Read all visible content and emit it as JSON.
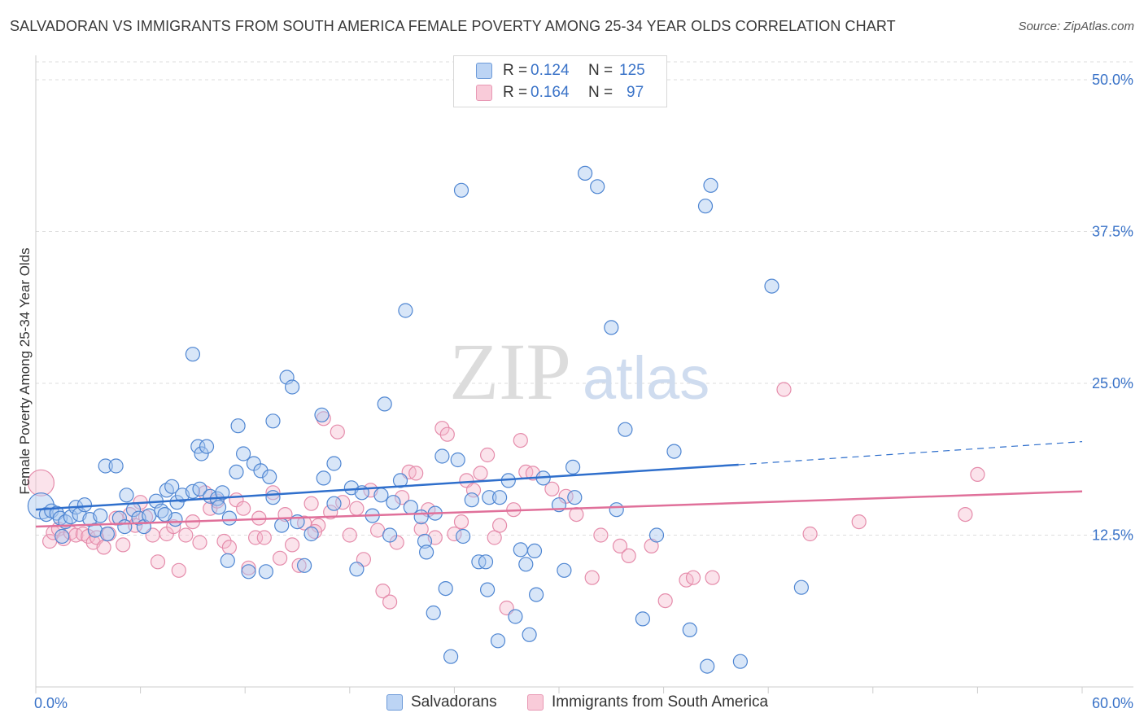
{
  "header": {
    "title": "SALVADORAN VS IMMIGRANTS FROM SOUTH AMERICA FEMALE POVERTY AMONG 25-34 YEAR OLDS CORRELATION CHART",
    "source": "Source: ZipAtlas.com"
  },
  "watermark": {
    "zip": "ZIP",
    "atlas": "atlas"
  },
  "stats": {
    "r_label": "R =",
    "n_label": "N =",
    "blue": {
      "r": "0.124",
      "n": "125"
    },
    "pink": {
      "r": "0.164",
      "n": "97"
    }
  },
  "legend": {
    "blue_name": "Salvadorans",
    "pink_name": "Immigrants from South America"
  },
  "colors": {
    "blue": "#3a73c8",
    "blue_fill": "#a9c8f0",
    "pink": "#e07098",
    "pink_fill": "#f6b8cc",
    "tick_label": "#3a73c8",
    "grid": "#dddddd"
  },
  "chart_data": {
    "type": "scatter",
    "title": "SALVADORAN VS IMMIGRANTS FROM SOUTH AMERICA FEMALE POVERTY AMONG 25-34 YEAR OLDS CORRELATION CHART",
    "xlabel": "",
    "ylabel": "Female Poverty Among 25-34 Year Olds",
    "xlim": [
      0,
      60
    ],
    "ylim": [
      0,
      52
    ],
    "x_tick_labels": [
      "0.0%",
      "60.0%"
    ],
    "y_ticks": [
      12.5,
      25.0,
      37.5,
      50.0
    ],
    "y_tick_labels": [
      "12.5%",
      "25.0%",
      "37.5%",
      "50.0%"
    ],
    "grid": "horizontal dashed",
    "legend_position": "bottom",
    "series": [
      {
        "name": "Salvadorans",
        "color": "#3a73c8",
        "r": 0.124,
        "n": 125,
        "trend": {
          "x": [
            0,
            40.3
          ],
          "y": [
            14.6,
            18.3
          ],
          "dashed_to_x": 60,
          "dashed_to_y": 20.2
        },
        "points": [
          [
            0.3,
            14.9
          ],
          [
            0.6,
            14.2
          ],
          [
            0.9,
            14.5
          ],
          [
            1.2,
            14.3
          ],
          [
            1.4,
            13.9
          ],
          [
            1.7,
            13.6
          ],
          [
            2.0,
            14.0
          ],
          [
            2.3,
            14.8
          ],
          [
            2.5,
            14.2
          ],
          [
            2.8,
            15.0
          ],
          [
            3.1,
            13.8
          ],
          [
            3.4,
            12.9
          ],
          [
            3.7,
            14.1
          ],
          [
            4.0,
            18.2
          ],
          [
            4.6,
            18.2
          ],
          [
            4.8,
            13.9
          ],
          [
            5.1,
            13.2
          ],
          [
            5.2,
            15.8
          ],
          [
            5.6,
            14.6
          ],
          [
            5.9,
            13.9
          ],
          [
            6.2,
            13.2
          ],
          [
            6.5,
            14.1
          ],
          [
            6.9,
            15.3
          ],
          [
            7.2,
            14.5
          ],
          [
            7.5,
            16.2
          ],
          [
            7.8,
            16.5
          ],
          [
            8.1,
            15.2
          ],
          [
            8.4,
            15.8
          ],
          [
            9.0,
            16.1
          ],
          [
            9.4,
            16.3
          ],
          [
            9.0,
            27.4
          ],
          [
            9.3,
            19.8
          ],
          [
            9.5,
            19.2
          ],
          [
            9.8,
            19.8
          ],
          [
            10.0,
            15.7
          ],
          [
            10.4,
            15.5
          ],
          [
            10.7,
            16.0
          ],
          [
            11.1,
            13.9
          ],
          [
            11.0,
            10.4
          ],
          [
            11.5,
            17.7
          ],
          [
            11.6,
            21.5
          ],
          [
            11.9,
            19.2
          ],
          [
            12.2,
            9.5
          ],
          [
            12.5,
            18.4
          ],
          [
            12.9,
            17.8
          ],
          [
            13.2,
            9.5
          ],
          [
            13.4,
            17.3
          ],
          [
            13.6,
            21.9
          ],
          [
            14.1,
            13.3
          ],
          [
            14.4,
            25.5
          ],
          [
            14.7,
            24.7
          ],
          [
            15.0,
            13.6
          ],
          [
            15.4,
            10.0
          ],
          [
            15.8,
            12.6
          ],
          [
            16.4,
            22.4
          ],
          [
            17.1,
            15.1
          ],
          [
            17.1,
            18.4
          ],
          [
            18.1,
            16.4
          ],
          [
            18.7,
            16.0
          ],
          [
            18.4,
            9.7
          ],
          [
            19.3,
            14.1
          ],
          [
            20.0,
            23.3
          ],
          [
            20.3,
            12.5
          ],
          [
            20.5,
            15.2
          ],
          [
            20.9,
            17.0
          ],
          [
            21.2,
            31.0
          ],
          [
            21.5,
            14.8
          ],
          [
            22.1,
            14.0
          ],
          [
            22.3,
            12.0
          ],
          [
            22.4,
            11.1
          ],
          [
            22.8,
            6.1
          ],
          [
            23.3,
            19.0
          ],
          [
            23.5,
            8.1
          ],
          [
            23.8,
            2.5
          ],
          [
            24.2,
            18.7
          ],
          [
            24.5,
            12.4
          ],
          [
            25.0,
            15.4
          ],
          [
            25.4,
            10.3
          ],
          [
            25.8,
            10.3
          ],
          [
            26.0,
            15.6
          ],
          [
            26.5,
            3.8
          ],
          [
            27.1,
            17.0
          ],
          [
            27.5,
            5.8
          ],
          [
            27.8,
            11.3
          ],
          [
            28.1,
            10.1
          ],
          [
            28.3,
            4.3
          ],
          [
            28.6,
            11.2
          ],
          [
            28.7,
            7.6
          ],
          [
            29.1,
            17.2
          ],
          [
            30.0,
            15.0
          ],
          [
            30.3,
            9.6
          ],
          [
            30.8,
            18.1
          ],
          [
            30.9,
            15.6
          ],
          [
            31.5,
            42.3
          ],
          [
            32.2,
            41.2
          ],
          [
            33.0,
            29.6
          ],
          [
            33.8,
            21.2
          ],
          [
            33.3,
            14.6
          ],
          [
            34.8,
            5.6
          ],
          [
            35.6,
            12.5
          ],
          [
            36.6,
            19.4
          ],
          [
            37.5,
            4.7
          ],
          [
            38.5,
            1.7
          ],
          [
            38.7,
            41.3
          ],
          [
            38.4,
            39.6
          ],
          [
            40.4,
            2.1
          ],
          [
            42.2,
            33.0
          ],
          [
            43.9,
            8.2
          ],
          [
            24.4,
            40.9
          ],
          [
            25.9,
            8.0
          ],
          [
            1.5,
            12.4
          ],
          [
            8.0,
            13.8
          ],
          [
            16.5,
            17.2
          ],
          [
            13.6,
            15.6
          ],
          [
            7.4,
            14.2
          ],
          [
            19.8,
            15.8
          ],
          [
            22.9,
            14.3
          ],
          [
            26.6,
            15.6
          ],
          [
            10.5,
            14.8
          ],
          [
            4.1,
            12.6
          ]
        ]
      },
      {
        "name": "Immigrants from South America",
        "color": "#e07098",
        "r": 0.164,
        "n": 97,
        "trend": {
          "x": [
            0,
            60
          ],
          "y": [
            13.2,
            16.1
          ]
        },
        "points": [
          [
            0.3,
            16.8
          ],
          [
            0.8,
            12.0
          ],
          [
            1.0,
            12.7
          ],
          [
            1.3,
            13.0
          ],
          [
            1.6,
            12.2
          ],
          [
            2.0,
            12.7
          ],
          [
            2.3,
            12.5
          ],
          [
            2.7,
            12.6
          ],
          [
            3.0,
            12.4
          ],
          [
            3.3,
            11.9
          ],
          [
            3.5,
            12.3
          ],
          [
            3.9,
            11.5
          ],
          [
            4.2,
            12.6
          ],
          [
            4.6,
            13.9
          ],
          [
            5.0,
            11.7
          ],
          [
            5.4,
            14.2
          ],
          [
            5.7,
            13.3
          ],
          [
            6.0,
            15.2
          ],
          [
            6.3,
            14.0
          ],
          [
            6.7,
            12.5
          ],
          [
            7.0,
            10.3
          ],
          [
            7.5,
            12.6
          ],
          [
            7.9,
            13.2
          ],
          [
            8.2,
            9.6
          ],
          [
            8.6,
            12.5
          ],
          [
            9.0,
            13.6
          ],
          [
            9.4,
            11.9
          ],
          [
            9.7,
            16.0
          ],
          [
            10.0,
            14.7
          ],
          [
            10.4,
            15.3
          ],
          [
            10.8,
            12.0
          ],
          [
            11.1,
            11.5
          ],
          [
            11.5,
            15.4
          ],
          [
            11.9,
            14.7
          ],
          [
            12.2,
            9.8
          ],
          [
            12.6,
            12.3
          ],
          [
            12.8,
            13.9
          ],
          [
            13.1,
            12.3
          ],
          [
            13.6,
            16.0
          ],
          [
            14.0,
            10.6
          ],
          [
            14.3,
            14.2
          ],
          [
            14.7,
            11.7
          ],
          [
            15.1,
            10.0
          ],
          [
            15.4,
            13.5
          ],
          [
            15.8,
            15.1
          ],
          [
            16.2,
            13.3
          ],
          [
            16.5,
            22.1
          ],
          [
            16.0,
            12.8
          ],
          [
            16.9,
            14.4
          ],
          [
            17.3,
            21.0
          ],
          [
            17.6,
            15.2
          ],
          [
            18.0,
            12.5
          ],
          [
            18.4,
            14.7
          ],
          [
            18.8,
            10.5
          ],
          [
            19.2,
            16.2
          ],
          [
            19.6,
            12.9
          ],
          [
            19.9,
            7.9
          ],
          [
            20.3,
            7.0
          ],
          [
            20.7,
            11.9
          ],
          [
            21.0,
            15.6
          ],
          [
            21.4,
            17.7
          ],
          [
            21.8,
            17.6
          ],
          [
            22.1,
            13.0
          ],
          [
            22.5,
            14.6
          ],
          [
            22.9,
            12.3
          ],
          [
            23.3,
            21.3
          ],
          [
            23.6,
            20.8
          ],
          [
            24.0,
            12.6
          ],
          [
            24.4,
            13.6
          ],
          [
            24.7,
            17.0
          ],
          [
            25.1,
            16.2
          ],
          [
            25.5,
            17.6
          ],
          [
            25.9,
            19.1
          ],
          [
            26.3,
            12.3
          ],
          [
            26.6,
            13.3
          ],
          [
            27.0,
            6.5
          ],
          [
            27.4,
            14.6
          ],
          [
            27.8,
            20.3
          ],
          [
            28.1,
            17.7
          ],
          [
            28.5,
            17.6
          ],
          [
            29.6,
            16.3
          ],
          [
            30.4,
            15.7
          ],
          [
            31.0,
            14.2
          ],
          [
            31.9,
            9.0
          ],
          [
            32.4,
            12.5
          ],
          [
            33.5,
            11.6
          ],
          [
            34.0,
            10.8
          ],
          [
            35.3,
            11.6
          ],
          [
            36.1,
            7.1
          ],
          [
            37.3,
            8.8
          ],
          [
            37.7,
            9.0
          ],
          [
            38.8,
            9.0
          ],
          [
            42.9,
            24.5
          ],
          [
            44.4,
            12.6
          ],
          [
            47.2,
            13.6
          ],
          [
            53.3,
            14.2
          ],
          [
            54.0,
            17.5
          ]
        ]
      }
    ]
  }
}
